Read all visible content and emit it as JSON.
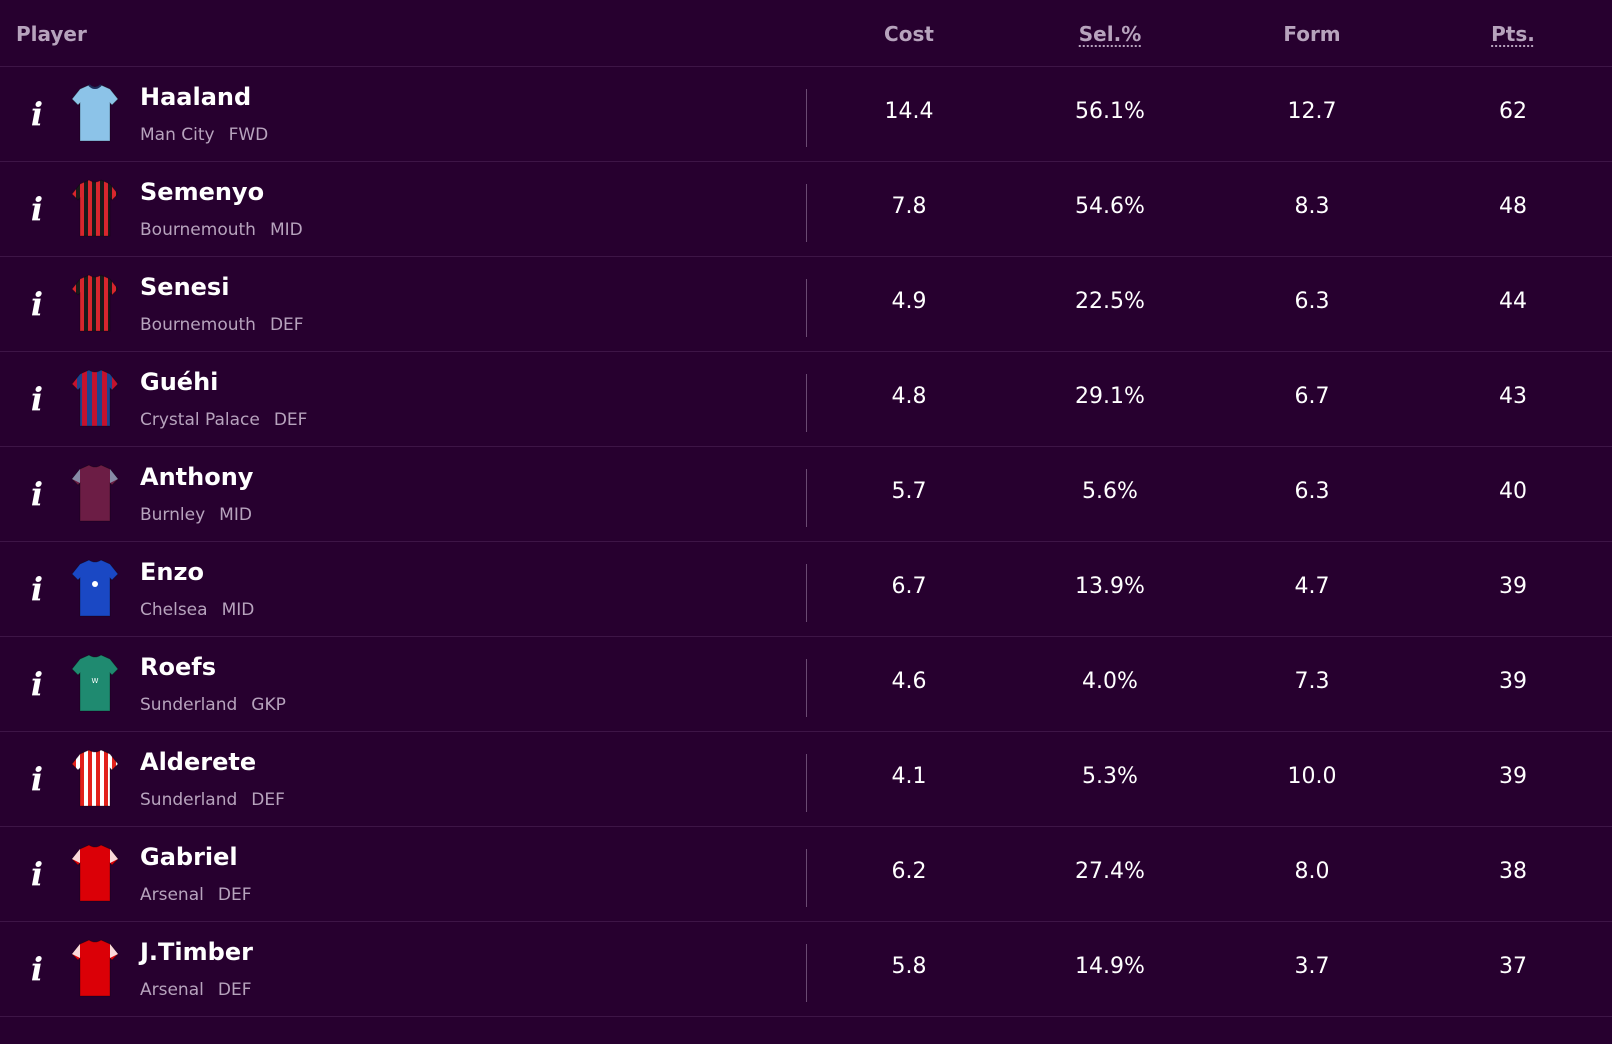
{
  "header": {
    "player": "Player",
    "cost": "Cost",
    "sel": "Sel.%",
    "form": "Form",
    "pts": "Pts."
  },
  "info_glyph": "i",
  "rows": [
    {
      "name": "Haaland",
      "team": "Man City",
      "pos": "FWD",
      "cost": "14.4",
      "sel": "56.1%",
      "form": "12.7",
      "pts": "62",
      "shirt": "mancity"
    },
    {
      "name": "Semenyo",
      "team": "Bournemouth",
      "pos": "MID",
      "cost": "7.8",
      "sel": "54.6%",
      "form": "8.3",
      "pts": "48",
      "shirt": "bournemouth"
    },
    {
      "name": "Senesi",
      "team": "Bournemouth",
      "pos": "DEF",
      "cost": "4.9",
      "sel": "22.5%",
      "form": "6.3",
      "pts": "44",
      "shirt": "bournemouth"
    },
    {
      "name": "Guéhi",
      "team": "Crystal Palace",
      "pos": "DEF",
      "cost": "4.8",
      "sel": "29.1%",
      "form": "6.7",
      "pts": "43",
      "shirt": "palace"
    },
    {
      "name": "Anthony",
      "team": "Burnley",
      "pos": "MID",
      "cost": "5.7",
      "sel": "5.6%",
      "form": "6.3",
      "pts": "40",
      "shirt": "burnley"
    },
    {
      "name": "Enzo",
      "team": "Chelsea",
      "pos": "MID",
      "cost": "6.7",
      "sel": "13.9%",
      "form": "4.7",
      "pts": "39",
      "shirt": "chelsea"
    },
    {
      "name": "Roefs",
      "team": "Sunderland",
      "pos": "GKP",
      "cost": "4.6",
      "sel": "4.0%",
      "form": "7.3",
      "pts": "39",
      "shirt": "sunderland_gk"
    },
    {
      "name": "Alderete",
      "team": "Sunderland",
      "pos": "DEF",
      "cost": "4.1",
      "sel": "5.3%",
      "form": "10.0",
      "pts": "39",
      "shirt": "sunderland"
    },
    {
      "name": "Gabriel",
      "team": "Arsenal",
      "pos": "DEF",
      "cost": "6.2",
      "sel": "27.4%",
      "form": "8.0",
      "pts": "38",
      "shirt": "arsenal"
    },
    {
      "name": "J.Timber",
      "team": "Arsenal",
      "pos": "DEF",
      "cost": "5.8",
      "sel": "14.9%",
      "form": "3.7",
      "pts": "37",
      "shirt": "arsenal"
    }
  ],
  "colors": {
    "background": "#27002f",
    "divider": "#3d1546",
    "muted": "#b7a3bd"
  }
}
